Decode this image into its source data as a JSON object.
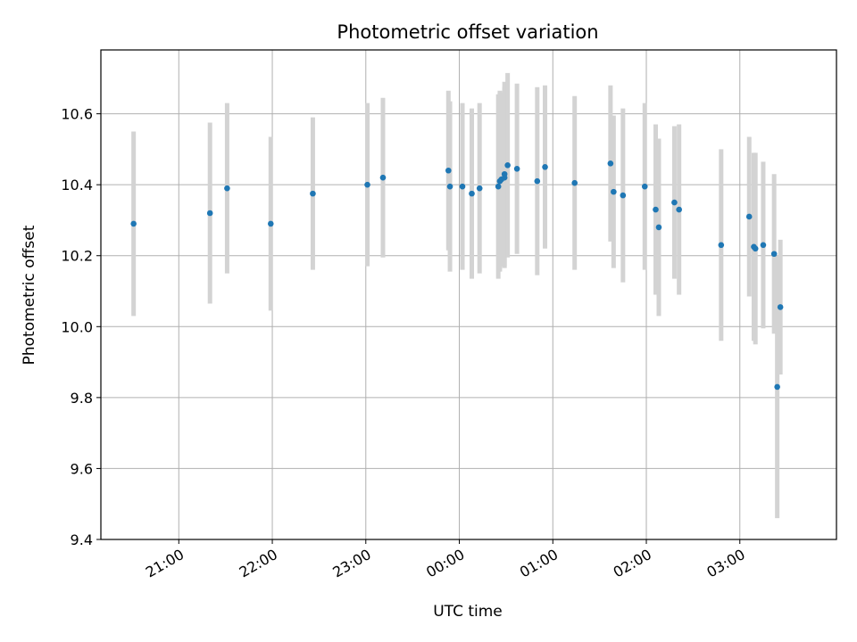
{
  "chart_data": {
    "type": "scatter",
    "title": "Photometric offset variation",
    "xlabel": "UTC time",
    "ylabel": "Photometric offset",
    "ylim": [
      9.4,
      10.78
    ],
    "xlim": [
      "20:10",
      "04:02"
    ],
    "grid": true,
    "x_ticks": [
      "21:00",
      "22:00",
      "23:00",
      "00:00",
      "01:00",
      "02:00",
      "03:00"
    ],
    "y_ticks": [
      "9.4",
      "9.6",
      "9.8",
      "10.0",
      "10.2",
      "10.4",
      "10.6"
    ],
    "colors": {
      "point": "#1f77b4",
      "errorbar": "#d3d3d3",
      "grid": "#b0b0b0"
    },
    "points": [
      {
        "x": "20:31",
        "y": 10.29,
        "err": 0.26
      },
      {
        "x": "21:20",
        "y": 10.32,
        "err": 0.255
      },
      {
        "x": "21:31",
        "y": 10.39,
        "err": 0.24
      },
      {
        "x": "21:59",
        "y": 10.29,
        "err": 0.245
      },
      {
        "x": "22:26",
        "y": 10.375,
        "err": 0.215
      },
      {
        "x": "23:01",
        "y": 10.4,
        "err": 0.23
      },
      {
        "x": "23:11",
        "y": 10.42,
        "err": 0.225
      },
      {
        "x": "23:53",
        "y": 10.44,
        "err": 0.225
      },
      {
        "x": "23:54",
        "y": 10.395,
        "err": 0.24
      },
      {
        "x": "00:02",
        "y": 10.395,
        "err": 0.235
      },
      {
        "x": "00:08",
        "y": 10.375,
        "err": 0.24
      },
      {
        "x": "00:13",
        "y": 10.39,
        "err": 0.24
      },
      {
        "x": "00:25",
        "y": 10.395,
        "err": 0.26
      },
      {
        "x": "00:26",
        "y": 10.41,
        "err": 0.255
      },
      {
        "x": "00:27",
        "y": 10.415,
        "err": 0.245
      },
      {
        "x": "00:29",
        "y": 10.43,
        "err": 0.26
      },
      {
        "x": "00:29",
        "y": 10.42,
        "err": 0.255
      },
      {
        "x": "00:31",
        "y": 10.455,
        "err": 0.26
      },
      {
        "x": "00:37",
        "y": 10.445,
        "err": 0.24
      },
      {
        "x": "00:50",
        "y": 10.41,
        "err": 0.265
      },
      {
        "x": "00:55",
        "y": 10.45,
        "err": 0.23
      },
      {
        "x": "01:14",
        "y": 10.405,
        "err": 0.245
      },
      {
        "x": "01:37",
        "y": 10.46,
        "err": 0.22
      },
      {
        "x": "01:39",
        "y": 10.38,
        "err": 0.215
      },
      {
        "x": "01:45",
        "y": 10.37,
        "err": 0.245
      },
      {
        "x": "01:59",
        "y": 10.395,
        "err": 0.235
      },
      {
        "x": "02:06",
        "y": 10.33,
        "err": 0.24
      },
      {
        "x": "02:08",
        "y": 10.28,
        "err": 0.25
      },
      {
        "x": "02:18",
        "y": 10.35,
        "err": 0.215
      },
      {
        "x": "02:21",
        "y": 10.33,
        "err": 0.24
      },
      {
        "x": "02:48",
        "y": 10.23,
        "err": 0.27
      },
      {
        "x": "03:06",
        "y": 10.31,
        "err": 0.225
      },
      {
        "x": "03:09",
        "y": 10.225,
        "err": 0.265
      },
      {
        "x": "03:10",
        "y": 10.22,
        "err": 0.27
      },
      {
        "x": "03:15",
        "y": 10.23,
        "err": 0.235
      },
      {
        "x": "03:22",
        "y": 10.205,
        "err": 0.225
      },
      {
        "x": "03:24",
        "y": 9.83,
        "err": 0.37
      },
      {
        "x": "03:26",
        "y": 10.055,
        "err": 0.19
      }
    ]
  }
}
